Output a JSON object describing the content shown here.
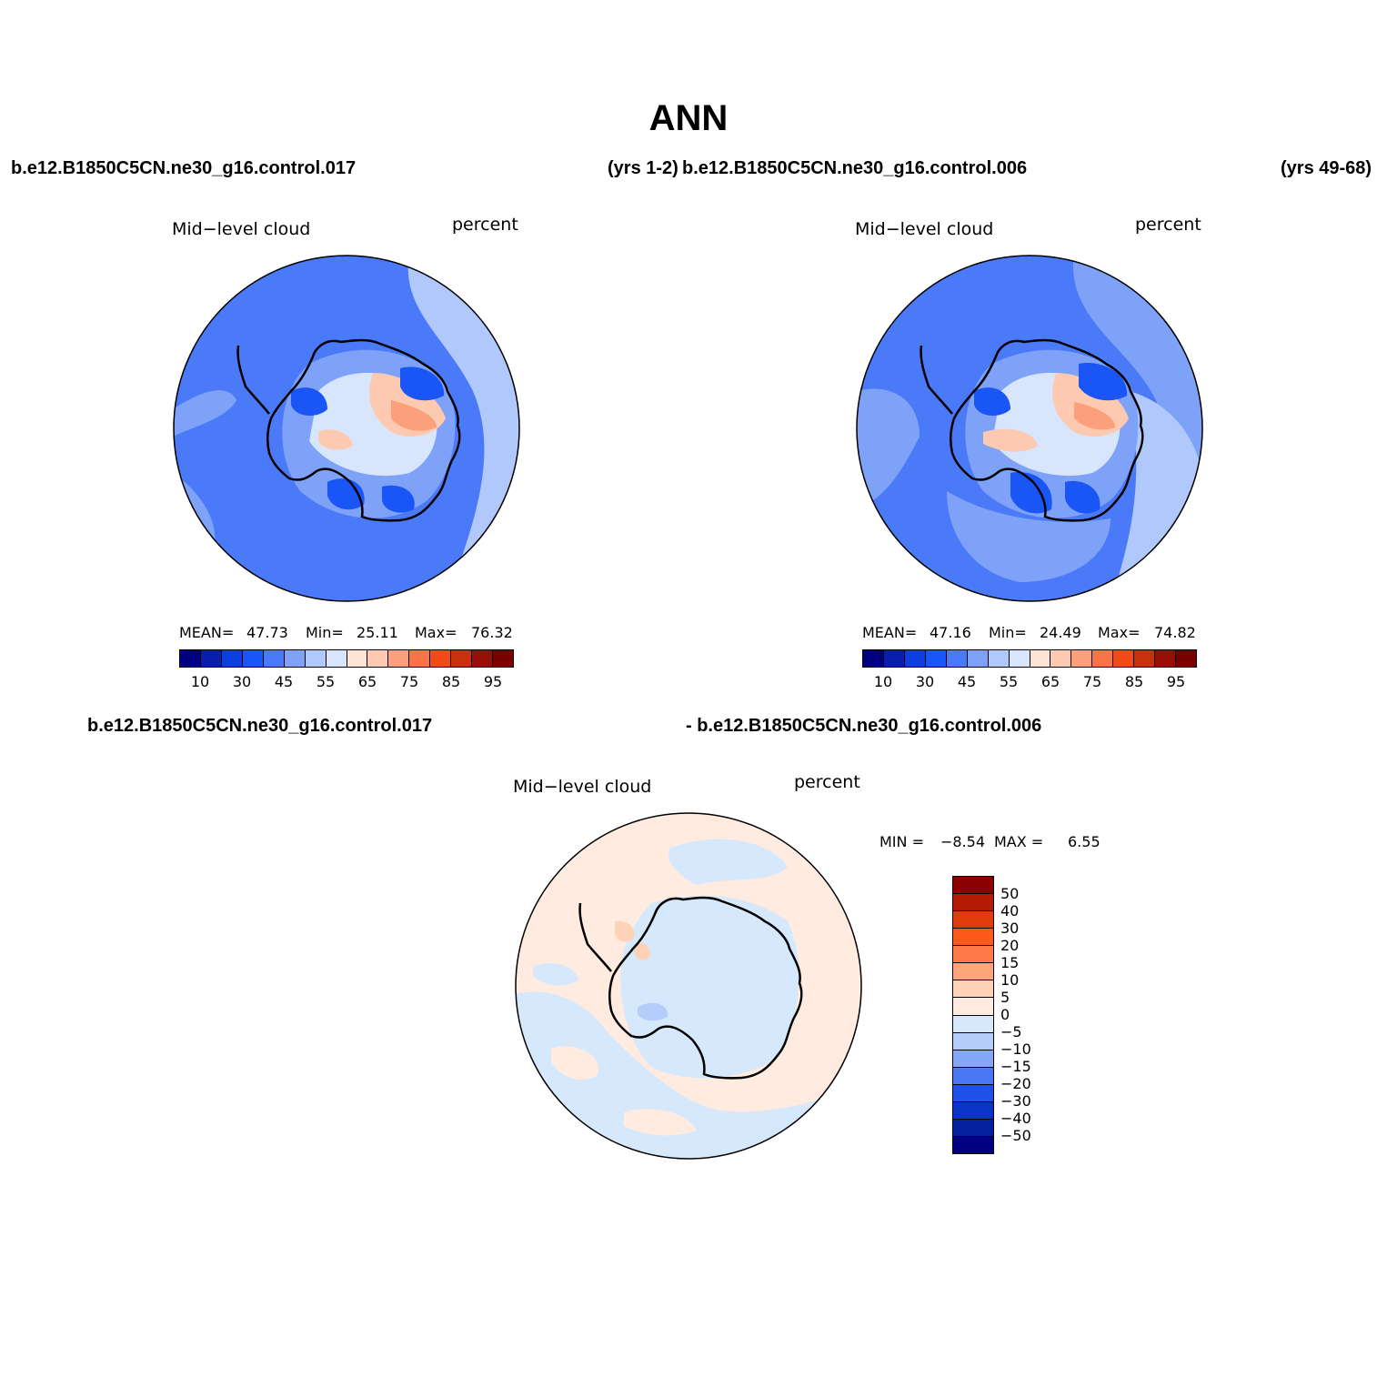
{
  "title": "ANN",
  "panels": [
    {
      "case_left": "b.e12.B1850C5CN.ne30_g16.control.017",
      "case_right": "(yrs 1-2)",
      "variable": "Mid−level cloud",
      "units": "percent",
      "stats": {
        "mean_label": "MEAN=",
        "mean": "47.73",
        "min_label": "Min=",
        "min": "25.11",
        "max_label": "Max=",
        "max": "76.32"
      },
      "colorbar_ticks": [
        "10",
        "30",
        "45",
        "55",
        "65",
        "75",
        "85",
        "95"
      ]
    },
    {
      "case_left": "b.e12.B1850C5CN.ne30_g16.control.006",
      "case_right": "(yrs 49-68)",
      "variable": "Mid−level cloud",
      "units": "percent",
      "stats": {
        "mean_label": "MEAN=",
        "mean": "47.16",
        "min_label": "Min=",
        "min": "24.49",
        "max_label": "Max=",
        "max": "74.82"
      },
      "colorbar_ticks": [
        "10",
        "30",
        "45",
        "55",
        "65",
        "75",
        "85",
        "95"
      ]
    }
  ],
  "difference": {
    "case_a": "b.e12.B1850C5CN.ne30_g16.control.017",
    "case_b": "- b.e12.B1850C5CN.ne30_g16.control.006",
    "variable": "Mid−level cloud",
    "units": "percent",
    "stats": {
      "min_label": "MIN =",
      "min": "−8.54",
      "max_label": "MAX =",
      "max": "6.55"
    },
    "colorbar_ticks": [
      "50",
      "40",
      "30",
      "20",
      "15",
      "10",
      "5",
      "0",
      "−5",
      "−10",
      "−15",
      "−20",
      "−30",
      "−40",
      "−50"
    ]
  },
  "colors": {
    "abs_scale": [
      "#000080",
      "#0a1fb0",
      "#0c3ee0",
      "#1a55f5",
      "#4a7af8",
      "#7fa2f9",
      "#b0c8fb",
      "#d8e6fd",
      "#fde4d4",
      "#fdc9b0",
      "#fba07a",
      "#f87448",
      "#f04b18",
      "#c8300e",
      "#961008",
      "#7a0000"
    ],
    "diff_scale_top_down": [
      "#8b0000",
      "#b51a05",
      "#e03c0a",
      "#ff5a1e",
      "#ff7a46",
      "#ffa57c",
      "#ffd2b8",
      "#ffebe0",
      "#d6e8fc",
      "#b4cdfb",
      "#86a6f8",
      "#4a78f5",
      "#1f50e8",
      "#0a34c8",
      "#03209f",
      "#000080"
    ]
  }
}
